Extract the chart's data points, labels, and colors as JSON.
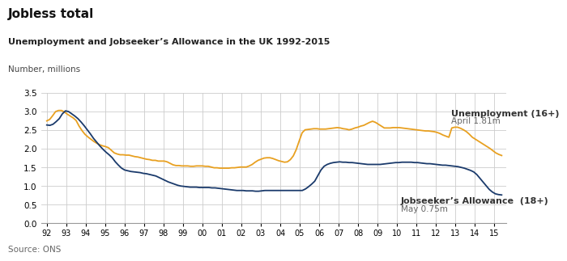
{
  "title": "Jobless total",
  "subtitle": "Unemployment and Jobseeker’s Allowance in the UK 1992-2015",
  "ylabel": "Number, millions",
  "source": "Source: ONS",
  "ylim": [
    0,
    3.5
  ],
  "yticks": [
    0,
    0.5,
    1.0,
    1.5,
    2.0,
    2.5,
    3.0,
    3.5
  ],
  "xtick_labels": [
    "92",
    "93",
    "94",
    "95",
    "96",
    "97",
    "98",
    "99",
    "00",
    "01",
    "02",
    "03",
    "04",
    "05",
    "06",
    "07",
    "08",
    "09",
    "10",
    "11",
    "12",
    "13",
    "14",
    "15"
  ],
  "unemployment_color": "#e8a020",
  "jsa_color": "#1a3a6b",
  "annotation_unemployment_label": "Unemployment (16+)",
  "annotation_unemployment_sub": "April 1.81m",
  "annotation_jsa_label": "Jobseeker’s Allowance  (18+)",
  "annotation_jsa_sub": "May 0.75m",
  "unemployment": [
    2.74,
    2.78,
    2.88,
    2.99,
    3.02,
    3.02,
    2.98,
    2.92,
    2.87,
    2.82,
    2.75,
    2.6,
    2.48,
    2.38,
    2.31,
    2.25,
    2.19,
    2.14,
    2.1,
    2.07,
    2.05,
    2.02,
    1.95,
    1.88,
    1.85,
    1.83,
    1.83,
    1.82,
    1.82,
    1.8,
    1.78,
    1.77,
    1.75,
    1.73,
    1.71,
    1.7,
    1.68,
    1.68,
    1.66,
    1.66,
    1.66,
    1.64,
    1.6,
    1.56,
    1.54,
    1.54,
    1.53,
    1.53,
    1.53,
    1.52,
    1.52,
    1.53,
    1.53,
    1.53,
    1.52,
    1.52,
    1.5,
    1.48,
    1.48,
    1.47,
    1.47,
    1.47,
    1.47,
    1.48,
    1.48,
    1.49,
    1.5,
    1.5,
    1.5,
    1.53,
    1.57,
    1.63,
    1.68,
    1.71,
    1.74,
    1.75,
    1.75,
    1.73,
    1.7,
    1.67,
    1.65,
    1.63,
    1.64,
    1.7,
    1.8,
    1.97,
    2.2,
    2.42,
    2.5,
    2.51,
    2.52,
    2.53,
    2.53,
    2.52,
    2.52,
    2.52,
    2.53,
    2.54,
    2.55,
    2.56,
    2.55,
    2.53,
    2.52,
    2.5,
    2.52,
    2.55,
    2.57,
    2.6,
    2.62,
    2.66,
    2.7,
    2.73,
    2.7,
    2.65,
    2.6,
    2.55,
    2.55,
    2.55,
    2.56,
    2.56,
    2.56,
    2.55,
    2.54,
    2.53,
    2.52,
    2.51,
    2.5,
    2.49,
    2.48,
    2.47,
    2.47,
    2.46,
    2.45,
    2.43,
    2.4,
    2.36,
    2.33,
    2.3,
    2.55,
    2.57,
    2.57,
    2.54,
    2.5,
    2.45,
    2.38,
    2.3,
    2.25,
    2.2,
    2.15,
    2.1,
    2.05,
    2.0,
    1.94,
    1.88,
    1.84,
    1.81
  ],
  "jsa": [
    2.63,
    2.62,
    2.65,
    2.72,
    2.8,
    2.93,
    3.01,
    2.99,
    2.93,
    2.87,
    2.8,
    2.71,
    2.61,
    2.5,
    2.39,
    2.27,
    2.17,
    2.07,
    1.98,
    1.9,
    1.83,
    1.75,
    1.64,
    1.55,
    1.47,
    1.42,
    1.4,
    1.38,
    1.37,
    1.36,
    1.35,
    1.33,
    1.32,
    1.3,
    1.28,
    1.26,
    1.22,
    1.18,
    1.14,
    1.1,
    1.07,
    1.04,
    1.01,
    0.99,
    0.98,
    0.97,
    0.96,
    0.96,
    0.96,
    0.95,
    0.95,
    0.95,
    0.95,
    0.94,
    0.94,
    0.93,
    0.92,
    0.91,
    0.9,
    0.89,
    0.88,
    0.87,
    0.87,
    0.87,
    0.86,
    0.86,
    0.86,
    0.85,
    0.85,
    0.86,
    0.87,
    0.87,
    0.87,
    0.87,
    0.87,
    0.87,
    0.87,
    0.87,
    0.87,
    0.87,
    0.87,
    0.87,
    0.87,
    0.91,
    0.97,
    1.04,
    1.12,
    1.27,
    1.42,
    1.52,
    1.57,
    1.6,
    1.62,
    1.63,
    1.64,
    1.63,
    1.63,
    1.62,
    1.62,
    1.61,
    1.6,
    1.59,
    1.58,
    1.57,
    1.57,
    1.57,
    1.57,
    1.57,
    1.58,
    1.59,
    1.6,
    1.61,
    1.62,
    1.62,
    1.63,
    1.63,
    1.63,
    1.63,
    1.62,
    1.62,
    1.61,
    1.6,
    1.59,
    1.59,
    1.58,
    1.57,
    1.56,
    1.55,
    1.55,
    1.54,
    1.53,
    1.52,
    1.51,
    1.49,
    1.47,
    1.44,
    1.41,
    1.37,
    1.3,
    1.2,
    1.1,
    1.0,
    0.9,
    0.83,
    0.78,
    0.76,
    0.75
  ]
}
